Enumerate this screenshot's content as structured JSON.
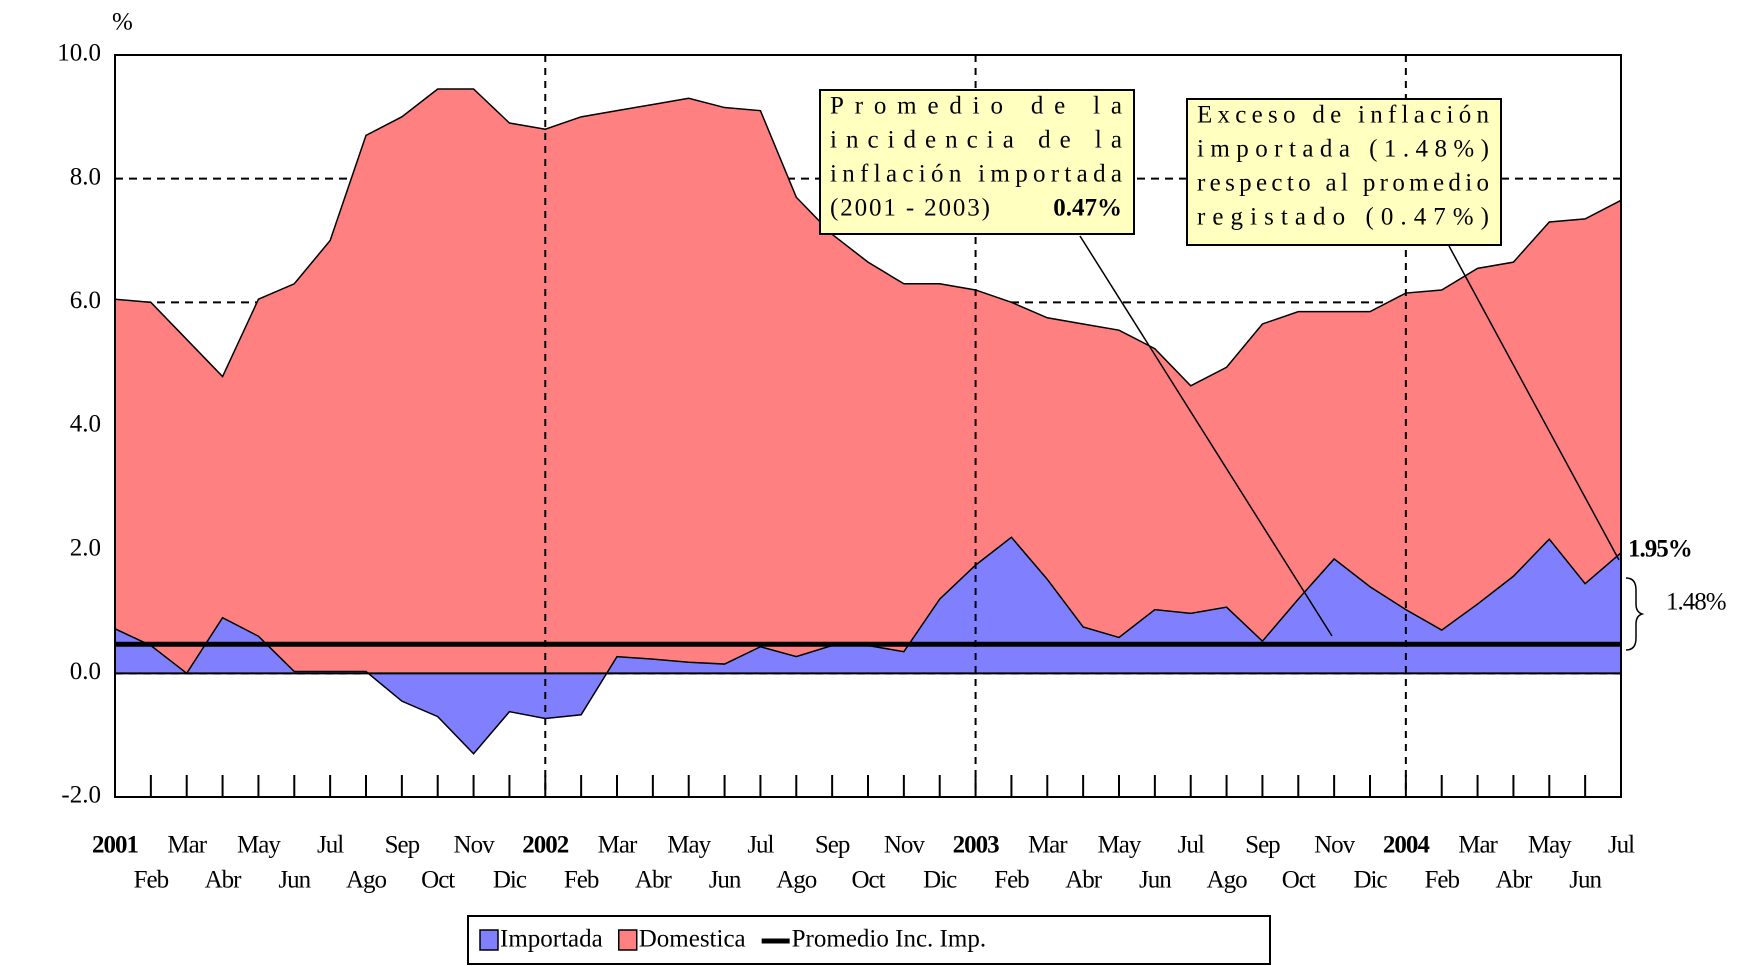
{
  "chart_data": {
    "type": "area",
    "y_label": "%",
    "categories": [
      "2001",
      "Feb",
      "Mar",
      "Abr",
      "May",
      "Jun",
      "Jul",
      "Ago",
      "Sep",
      "Oct",
      "Nov",
      "Dic",
      "2002",
      "Feb",
      "Mar",
      "Abr",
      "May",
      "Jun",
      "Jul",
      "Ago",
      "Sep",
      "Oct",
      "Nov",
      "Dic",
      "2003",
      "Feb",
      "Mar",
      "Abr",
      "May",
      "Jun",
      "Jul",
      "Ago",
      "Sep",
      "Oct",
      "Nov",
      "Dic",
      "2004",
      "Feb",
      "Mar",
      "Abr",
      "May",
      "Jun",
      "Jul"
    ],
    "series": [
      {
        "name": "Importada",
        "color": "#8080ff",
        "values": [
          0.72,
          0.45,
          0.0,
          0.9,
          0.6,
          0.03,
          0.03,
          0.03,
          -0.45,
          -0.7,
          -1.3,
          -0.62,
          -0.73,
          -0.67,
          0.27,
          0.23,
          0.18,
          0.15,
          0.43,
          0.27,
          0.45,
          0.45,
          0.35,
          1.2,
          1.75,
          2.2,
          1.52,
          0.75,
          0.58,
          1.03,
          0.97,
          1.07,
          0.52,
          1.2,
          1.85,
          1.4,
          1.03,
          0.7,
          1.12,
          1.57,
          2.17,
          1.45,
          1.95
        ]
      },
      {
        "name": "Domestica",
        "color": "#ff8080",
        "values": [
          6.05,
          6.0,
          5.4,
          4.8,
          6.05,
          6.3,
          7.0,
          8.7,
          9.0,
          9.45,
          9.45,
          8.9,
          8.8,
          9.0,
          9.1,
          9.2,
          9.3,
          9.15,
          9.1,
          7.7,
          7.1,
          6.65,
          6.3,
          6.3,
          6.2,
          6.0,
          5.75,
          5.65,
          5.55,
          5.25,
          4.65,
          4.95,
          5.65,
          5.85,
          5.85,
          5.85,
          6.15,
          6.2,
          6.55,
          6.65,
          7.3,
          7.35,
          7.65
        ]
      }
    ],
    "reference_line": {
      "name": "Promedio Inc. Imp.",
      "value": 0.47,
      "color": "#000000"
    },
    "ylim": [
      -2,
      10
    ],
    "yticks": [
      {
        "value": -2,
        "label": "-2.0"
      },
      {
        "value": 0,
        "label": "0.0"
      },
      {
        "value": 2,
        "label": "2.0"
      },
      {
        "value": 4,
        "label": "4.0"
      },
      {
        "value": 6,
        "label": "6.0"
      },
      {
        "value": 8,
        "label": "8.0"
      },
      {
        "value": 10,
        "label": "10.0"
      }
    ],
    "grid": true,
    "annotations": [
      {
        "lines": [
          "Promedio de la",
          "incidencia de la",
          "inflación importada",
          "(2001 - 2003)"
        ],
        "highlight": "0.47%"
      },
      {
        "lines": [
          "Exceso de inflación",
          "importada (1.48%)",
          "respecto al promedio",
          "registado (0.47%)"
        ]
      }
    ],
    "end_labels": [
      {
        "text": "1.95%",
        "color": "#ff0000"
      },
      {
        "text": "1.48%",
        "color": "#000000"
      }
    ]
  }
}
